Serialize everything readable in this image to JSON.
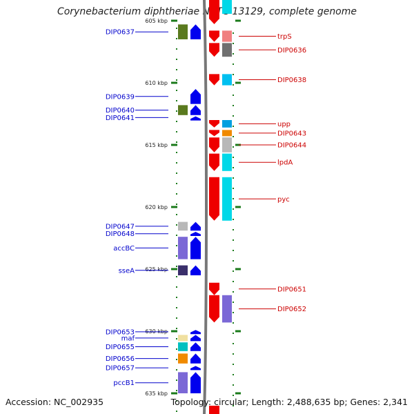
{
  "title": "Corynebacterium diphtheriae NCTC 13129, complete genome",
  "accession": "Accession: NC_002935",
  "topology": "Topology: circular; Length: 2,488,635 bp; Genes: 2,341",
  "colors": {
    "left_label": "#0000cc",
    "right_label": "#cc0000",
    "tick": "#1a7a1a",
    "backbone": "#888888"
  },
  "ticks": [
    {
      "label": "605 kbp",
      "kbp": 605
    },
    {
      "label": "610 kbp",
      "kbp": 610
    },
    {
      "label": "615 kbp",
      "kbp": 615
    },
    {
      "label": "620 kbp",
      "kbp": 620
    },
    {
      "label": "625 kbp",
      "kbp": 625
    },
    {
      "label": "630 kbp",
      "kbp": 630
    },
    {
      "label": "635 kbp",
      "kbp": 635
    }
  ],
  "genes_left": [
    {
      "label": "DIP0637",
      "cog_color": "#5a7a1e",
      "start_kbp": 605.3,
      "end_kbp": 606.5
    },
    {
      "label": "DIP0639",
      "cog_color": "",
      "start_kbp": 610.5,
      "end_kbp": 611.7
    },
    {
      "label": "DIP0640",
      "cog_color": "#5a7a1e",
      "start_kbp": 611.8,
      "end_kbp": 612.6
    },
    {
      "label": "DIP0641",
      "cog_color": "",
      "start_kbp": 612.7,
      "end_kbp": 612.9
    },
    {
      "label": "DIP0647",
      "cog_color": "#b8b8b8",
      "start_kbp": 621.2,
      "end_kbp": 621.9
    },
    {
      "label": "DIP0648",
      "cog_color": "",
      "start_kbp": 622.0,
      "end_kbp": 622.3
    },
    {
      "label": "accBC",
      "cog_color": "#7b68d6",
      "start_kbp": 622.4,
      "end_kbp": 624.2
    },
    {
      "label": "sseA",
      "cog_color": "#3a2f6b",
      "start_kbp": 624.7,
      "end_kbp": 625.5
    },
    {
      "label": "DIP0653",
      "cog_color": "",
      "start_kbp": 629.9,
      "end_kbp": 630.2
    },
    {
      "label": "maf",
      "cog_color": "#f0e0a0",
      "start_kbp": 630.3,
      "end_kbp": 630.8
    },
    {
      "label": "DIP0655",
      "cog_color": "#00c0c0",
      "start_kbp": 630.9,
      "end_kbp": 631.6
    },
    {
      "label": "DIP0656",
      "cog_color": "#f08a00",
      "start_kbp": 631.8,
      "end_kbp": 632.6
    },
    {
      "label": "DIP0657",
      "cog_color": "",
      "start_kbp": 632.8,
      "end_kbp": 633.1
    },
    {
      "label": "pccB1",
      "cog_color": "#7b68d6",
      "start_kbp": 633.3,
      "end_kbp": 635.0
    }
  ],
  "genes_right": [
    {
      "label": "trpS",
      "cog_color": "#f08080",
      "start_kbp": 605.8,
      "end_kbp": 606.7
    },
    {
      "label": "DIP0636",
      "cog_color": "#707070",
      "start_kbp": 606.8,
      "end_kbp": 607.9
    },
    {
      "label": "DIP0638",
      "cog_color": "#00c0f0",
      "start_kbp": 609.3,
      "end_kbp": 610.2
    },
    {
      "label": "upp",
      "cog_color": "#00a0e0",
      "start_kbp": 613.0,
      "end_kbp": 613.6
    },
    {
      "label": "DIP0643",
      "cog_color": "#f08a00",
      "start_kbp": 613.8,
      "end_kbp": 614.3
    },
    {
      "label": "DIP0644",
      "cog_color": "#b8b8b8",
      "start_kbp": 614.4,
      "end_kbp": 615.6
    },
    {
      "label": "lpdA",
      "cog_color": "#00d8e8",
      "start_kbp": 615.7,
      "end_kbp": 617.1
    },
    {
      "label": "pyc",
      "cog_color": "#00d8e8",
      "start_kbp": 617.6,
      "end_kbp": 621.1
    },
    {
      "label": "DIP0651",
      "cog_color": "",
      "start_kbp": 626.1,
      "end_kbp": 627.1
    },
    {
      "label": "DIP0652",
      "cog_color": "#7b68d6",
      "start_kbp": 627.1,
      "end_kbp": 629.3
    }
  ]
}
